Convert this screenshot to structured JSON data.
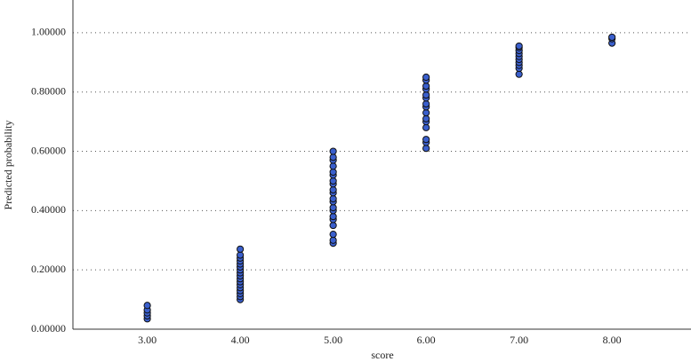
{
  "chart_data": {
    "type": "scatter",
    "x_label": "score",
    "y_label": "Predicted probability",
    "x": [
      3,
      3,
      3,
      3,
      3,
      4,
      4,
      4,
      4,
      4,
      4,
      4,
      4,
      4,
      4,
      4,
      4,
      4,
      4,
      4,
      4,
      4,
      5,
      5,
      5,
      5,
      5,
      5,
      5,
      5,
      5,
      5,
      5,
      5,
      5,
      5,
      5,
      5,
      5,
      5,
      5,
      5,
      6,
      6,
      6,
      6,
      6,
      6,
      6,
      6,
      6,
      6,
      6,
      6,
      6,
      6,
      6,
      7,
      7,
      7,
      7,
      7,
      7,
      7,
      7,
      7,
      7,
      8,
      8,
      8
    ],
    "values": [
      0.035,
      0.045,
      0.055,
      0.065,
      0.08,
      0.1,
      0.11,
      0.12,
      0.13,
      0.14,
      0.15,
      0.16,
      0.17,
      0.18,
      0.19,
      0.2,
      0.21,
      0.22,
      0.23,
      0.24,
      0.25,
      0.27,
      0.29,
      0.3,
      0.32,
      0.35,
      0.37,
      0.38,
      0.4,
      0.41,
      0.43,
      0.44,
      0.46,
      0.47,
      0.49,
      0.5,
      0.52,
      0.53,
      0.55,
      0.57,
      0.58,
      0.6,
      0.61,
      0.63,
      0.64,
      0.68,
      0.7,
      0.71,
      0.73,
      0.75,
      0.76,
      0.78,
      0.79,
      0.81,
      0.82,
      0.84,
      0.85,
      0.86,
      0.88,
      0.89,
      0.9,
      0.91,
      0.92,
      0.93,
      0.94,
      0.95,
      0.955,
      0.965,
      0.98,
      0.985
    ],
    "color": "#3a5fcd",
    "xlim": [
      2.2,
      8.85
    ],
    "ylim": [
      0,
      1.1
    ],
    "xticks": [
      {
        "value": 3,
        "label": "3.00"
      },
      {
        "value": 4,
        "label": "4.00"
      },
      {
        "value": 5,
        "label": "5.00"
      },
      {
        "value": 6,
        "label": "6.00"
      },
      {
        "value": 7,
        "label": "7.00"
      },
      {
        "value": 8,
        "label": "8.00"
      }
    ],
    "yticks": [
      {
        "value": 0,
        "label": "0.00000"
      },
      {
        "value": 0.2,
        "label": "0.20000"
      },
      {
        "value": 0.4,
        "label": "0.40000"
      },
      {
        "value": 0.6,
        "label": "0.60000"
      },
      {
        "value": 0.8,
        "label": "0.80000"
      },
      {
        "value": 1,
        "label": "1.00000"
      }
    ],
    "grid": true
  }
}
